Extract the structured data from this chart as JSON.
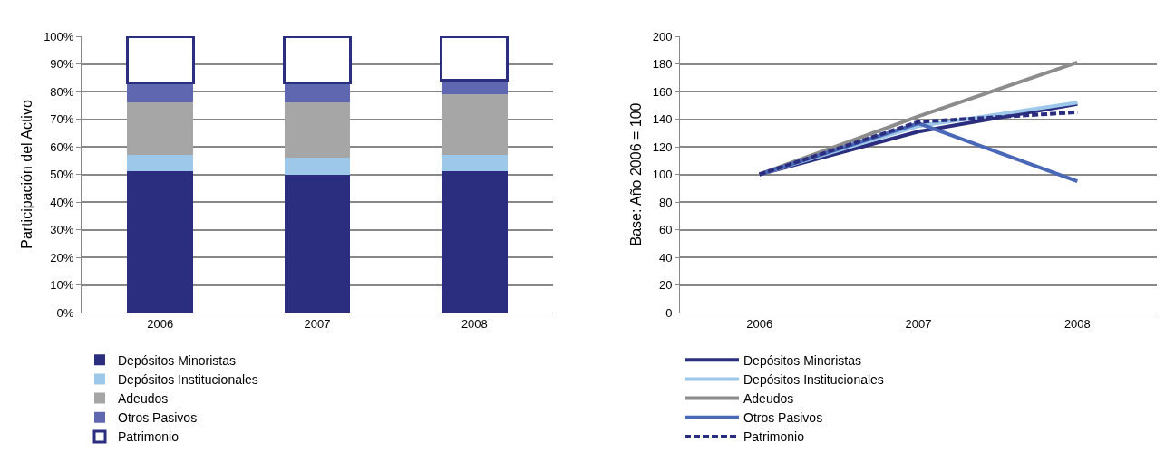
{
  "chart_data": [
    {
      "type": "bar",
      "stacked": true,
      "ylabel": "Participación del Activo",
      "categories": [
        "2006",
        "2007",
        "2008"
      ],
      "ylim": [
        0,
        100
      ],
      "yticks": [
        {
          "value": 0,
          "label": "0%"
        },
        {
          "value": 10,
          "label": "10%"
        },
        {
          "value": 20,
          "label": "20%"
        },
        {
          "value": 30,
          "label": "30%"
        },
        {
          "value": 40,
          "label": "40%"
        },
        {
          "value": 50,
          "label": "50%"
        },
        {
          "value": 60,
          "label": "60%"
        },
        {
          "value": 70,
          "label": "70%"
        },
        {
          "value": 80,
          "label": "80%"
        },
        {
          "value": 90,
          "label": "90%"
        },
        {
          "value": 100,
          "label": "100%"
        }
      ],
      "grid": "y",
      "legend": "bottom",
      "series": [
        {
          "name": "Depósitos Minoristas",
          "color": "#2b2d7e",
          "values": [
            51,
            50,
            51
          ]
        },
        {
          "name": "Depósitos Institucionales",
          "color": "#9dc8ea",
          "values": [
            6,
            6,
            6
          ]
        },
        {
          "name": "Adeudos",
          "color": "#a6a6a6",
          "values": [
            19,
            20,
            22
          ]
        },
        {
          "name": "Otros Pasivos",
          "color": "#5f67b1",
          "values": [
            7,
            7,
            5
          ]
        },
        {
          "name": "Patrimonio",
          "color": "#ffffff",
          "values": [
            17,
            17,
            16
          ]
        }
      ]
    },
    {
      "type": "line",
      "ylabel": "Base: Año 2006 = 100",
      "categories": [
        "2006",
        "2007",
        "2008"
      ],
      "ylim": [
        0,
        200
      ],
      "yticks": [
        0,
        20,
        40,
        60,
        80,
        100,
        120,
        140,
        160,
        180,
        200
      ],
      "grid": "y",
      "legend": "bottom",
      "marker": "none",
      "series": [
        {
          "name": "Depósitos Minoristas",
          "color": "#2b2d7e",
          "values": [
            100,
            131,
            151
          ]
        },
        {
          "name": "Depósitos Institucionales",
          "color": "#9dc8ea",
          "values": [
            100,
            135,
            152
          ]
        },
        {
          "name": "Adeudos",
          "color": "#8c8c8c",
          "values": [
            100,
            142,
            181
          ]
        },
        {
          "name": "Otros Pasivos",
          "color": "#4a68b8",
          "values": [
            100,
            137,
            95
          ]
        },
        {
          "name": "Patrimonio",
          "color": "#2b2d7e",
          "values": [
            100,
            138,
            145
          ],
          "line_style": "dashed"
        }
      ]
    }
  ]
}
